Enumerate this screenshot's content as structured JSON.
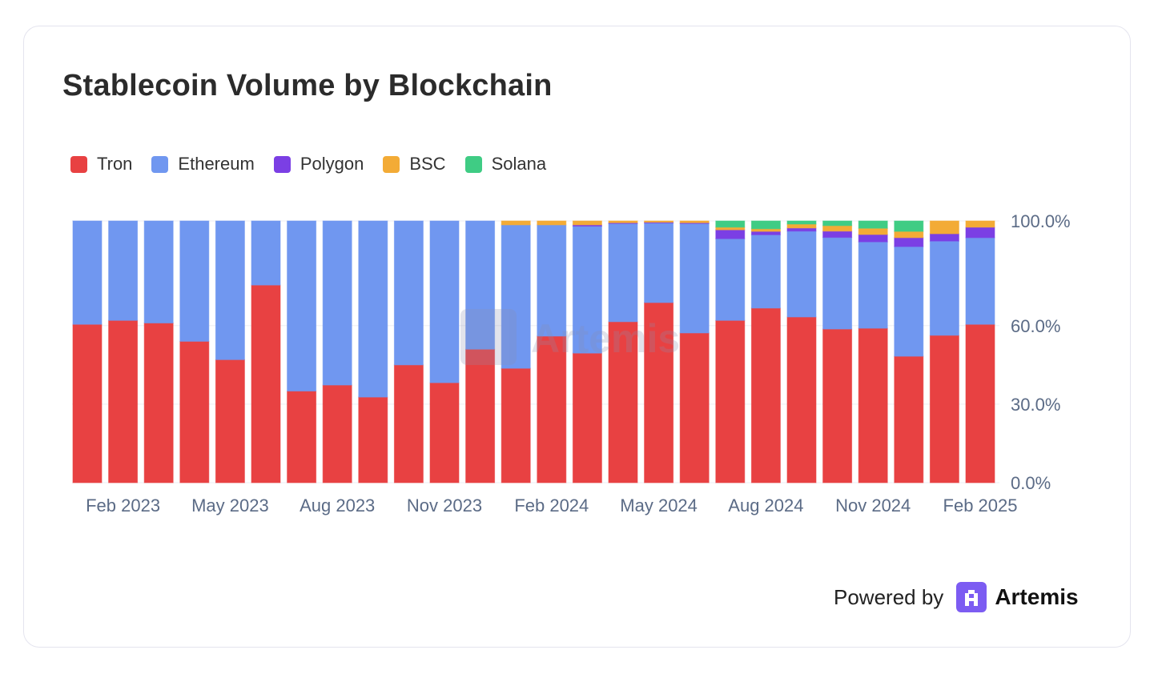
{
  "title": "Stablecoin Volume by Blockchain",
  "powered_by": "Powered by",
  "brand": "Artemis",
  "watermark": "Artemis",
  "colors": {
    "Tron": "#e84142",
    "Ethereum": "#7097f0",
    "Polygon": "#7b3fe4",
    "BSC": "#f3ab36",
    "Solana": "#3fcc84"
  },
  "chart_data": {
    "type": "bar",
    "stacked": true,
    "title": "Stablecoin Volume by Blockchain",
    "xlabel": "",
    "ylabel": "",
    "ylim": [
      0,
      100
    ],
    "y_ticks": [
      "0.0%",
      "30.0%",
      "60.0%",
      "100.0%"
    ],
    "y_tick_values": [
      0,
      30,
      60,
      100
    ],
    "legend_position": "top-left",
    "categories": [
      "Jan 2023",
      "Feb 2023",
      "Mar 2023",
      "Apr 2023",
      "May 2023",
      "Jun 2023",
      "Jul 2023",
      "Aug 2023",
      "Sep 2023",
      "Oct 2023",
      "Nov 2023",
      "Dec 2023",
      "Jan 2024",
      "Feb 2024",
      "Mar 2024",
      "Apr 2024",
      "May 2024",
      "Jun 2024",
      "Jul 2024",
      "Aug 2024",
      "Sep 2024",
      "Oct 2024",
      "Nov 2024",
      "Dec 2024",
      "Jan 2025",
      "Feb 2025"
    ],
    "x_tick_labels": [
      {
        "index": 1,
        "label": "Feb 2023"
      },
      {
        "index": 4,
        "label": "May 2023"
      },
      {
        "index": 7,
        "label": "Aug 2023"
      },
      {
        "index": 10,
        "label": "Nov 2023"
      },
      {
        "index": 13,
        "label": "Feb 2024"
      },
      {
        "index": 16,
        "label": "May 2024"
      },
      {
        "index": 19,
        "label": "Aug 2024"
      },
      {
        "index": 22,
        "label": "Nov 2024"
      },
      {
        "index": 25,
        "label": "Feb 2025"
      }
    ],
    "series": [
      {
        "name": "Tron",
        "values": [
          60.5,
          62,
          61,
          54,
          47,
          75.5,
          35,
          37.3,
          32.7,
          45,
          38.2,
          51,
          43.7,
          56,
          49.5,
          61.5,
          68.8,
          57.2,
          62,
          66.7,
          63.3,
          58.7,
          59,
          48.3,
          56.3,
          60.5
        ]
      },
      {
        "name": "Ethereum",
        "values": [
          39.5,
          38,
          39,
          46,
          53,
          24.5,
          65,
          62.7,
          67.3,
          55,
          61.8,
          49,
          54.8,
          42.5,
          48.5,
          37.5,
          30.4,
          41.8,
          31.2,
          28,
          32.8,
          35,
          33,
          41.9,
          36,
          33.1
        ]
      },
      {
        "name": "Polygon",
        "values": [
          0,
          0,
          0,
          0,
          0,
          0,
          0,
          0,
          0,
          0,
          0,
          0,
          0,
          0,
          0.5,
          0.3,
          0.3,
          0.3,
          3.4,
          1.3,
          1.2,
          2.4,
          2.8,
          3.4,
          2.8,
          4
        ]
      },
      {
        "name": "BSC",
        "values": [
          0,
          0,
          0,
          0,
          0,
          0,
          0,
          0,
          0,
          0,
          0,
          0,
          1.5,
          1.5,
          1.5,
          0.7,
          0.5,
          0.7,
          1,
          1,
          1.5,
          2.1,
          2.4,
          2.4,
          4.9,
          2.4
        ]
      },
      {
        "name": "Solana",
        "values": [
          0,
          0,
          0,
          0,
          0,
          0,
          0,
          0,
          0,
          0,
          0,
          0,
          0,
          0,
          0,
          0,
          0,
          0,
          2.4,
          3,
          1.2,
          1.8,
          2.8,
          4,
          0,
          0
        ]
      }
    ]
  }
}
